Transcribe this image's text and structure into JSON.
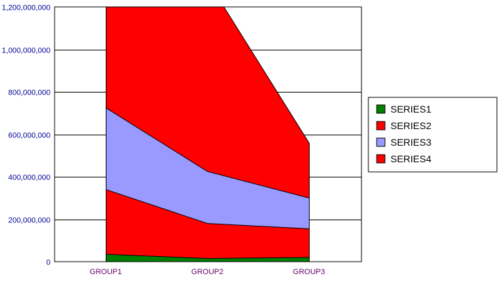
{
  "chart_data": {
    "type": "area",
    "stacked": true,
    "title": "",
    "xlabel": "",
    "ylabel": "",
    "categories": [
      "GROUP1",
      "GROUP2",
      "GROUP3"
    ],
    "ylim": [
      0,
      1200000000
    ],
    "yticks": [
      0,
      200000000,
      400000000,
      600000000,
      800000000,
      1000000000,
      1200000000
    ],
    "ytick_labels": [
      "0",
      "200,000,000",
      "400,000,000",
      "600,000,000",
      "800,000,000",
      "1,000,000,000",
      "1,200,000,000"
    ],
    "grid": "horizontal",
    "legend_position": "right",
    "tick_label_colors": {
      "y": "#000099",
      "x": "#660066"
    },
    "series": [
      {
        "name": "SERIES1",
        "color": "#008000",
        "values": [
          35000000,
          15000000,
          20000000
        ]
      },
      {
        "name": "SERIES2",
        "color": "#ff0000",
        "values": [
          305000000,
          165000000,
          135000000
        ]
      },
      {
        "name": "SERIES3",
        "color": "#9999ff",
        "values": [
          385000000,
          245000000,
          145000000
        ]
      },
      {
        "name": "SERIES4",
        "color": "#ff0000",
        "values": [
          600000000,
          900000000,
          260000000
        ]
      }
    ]
  }
}
